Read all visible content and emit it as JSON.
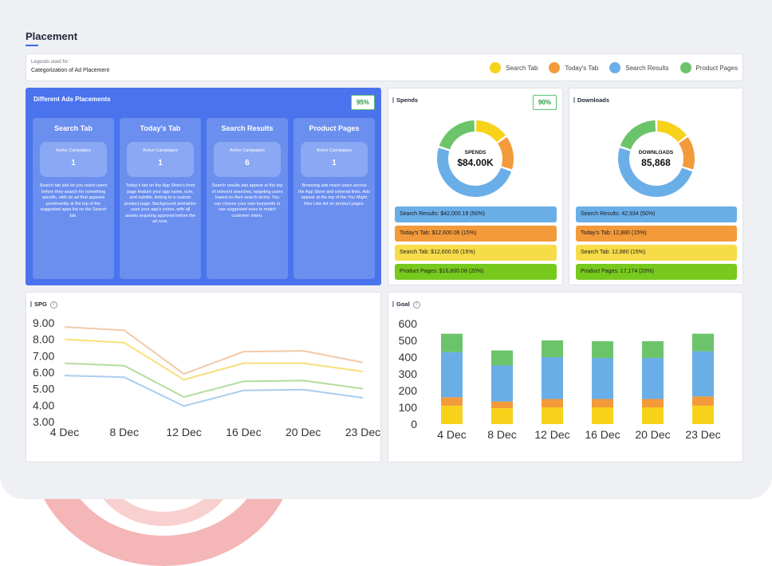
{
  "page": {
    "title": "Placement"
  },
  "legend": {
    "caption": "Legends used for :",
    "title": "Categorization of Ad Placement",
    "items": [
      {
        "label": "Search Tab",
        "color": "#f7d21a"
      },
      {
        "label": "Today's Tab",
        "color": "#f39a3b"
      },
      {
        "label": "Search Results",
        "color": "#6aaee8"
      },
      {
        "label": "Product Pages",
        "color": "#6cc46a"
      }
    ]
  },
  "ads": {
    "title": "Different Ads Placements",
    "badge": "95%",
    "columns": [
      {
        "name": "Search Tab",
        "campaign_label": "Active Campaigns",
        "campaigns": "1",
        "desc": "Search tab ads let you reach users before they search for something specific, with an ad that appears prominently at the top of the suggested apps list on the Search tab."
      },
      {
        "name": "Today's Tab",
        "campaign_label": "Active Campaigns",
        "campaigns": "1",
        "desc": "Today's tab on the App Store's front page feature your app name, icon, and subtitle, linking to a custom product page. Background animation uses your app's colors, with all assets requiring approval before the ad runs."
      },
      {
        "name": "Search Results",
        "campaign_label": "Active Campaigns",
        "campaigns": "6",
        "desc": "Search results ads appear at the top of relevent searches, targeting users based on their search terms. You can choose your own keywords or use suggested ones to match customer intent."
      },
      {
        "name": "Product Pages",
        "campaign_label": "Active Campaigns",
        "campaigns": "1",
        "desc": "Browsing ads reach users across the App Store and external links. Ads appear at the top of the You Might Also Like list on product pages."
      }
    ]
  },
  "spends": {
    "title": "Spends",
    "badge": "90%",
    "center_label": "SPENDS",
    "center_value": "$84.00K",
    "rows": [
      {
        "text": "Search Results: $42,000.19 (50%)",
        "color": "#6aaee8"
      },
      {
        "text": "Today's Tab: $12,600.06 (15%)",
        "color": "#f39a3b"
      },
      {
        "text": "Search Tab: $12,600.06 (15%)",
        "color": "#f7dc4a"
      },
      {
        "text": "Product Pages: $16,800.08 (20%)",
        "color": "#78c91e"
      }
    ]
  },
  "downloads": {
    "title": "Downloads",
    "center_label": "DOWNLOADS",
    "center_value": "85,868",
    "rows": [
      {
        "text": "Search Results: 42,934 (50%)",
        "color": "#6aaee8"
      },
      {
        "text": "Today's Tab: 12,880 (15%)",
        "color": "#f39a3b"
      },
      {
        "text": "Search Tab: 12,880 (15%)",
        "color": "#f7dc4a"
      },
      {
        "text": "Product Pages: 17,174 (20%)",
        "color": "#78c91e"
      }
    ]
  },
  "donut_segments": [
    {
      "name": "Search Tab",
      "pct": 15,
      "color": "#f7d21a"
    },
    {
      "name": "Today's Tab",
      "pct": 15,
      "color": "#f39a3b"
    },
    {
      "name": "Search Results",
      "pct": 50,
      "color": "#6aaee8"
    },
    {
      "name": "Product Pages",
      "pct": 20,
      "color": "#6cc46a"
    }
  ],
  "spg": {
    "title": "SPG",
    "chart_data": {
      "type": "line",
      "x": [
        "4 Dec",
        "8 Dec",
        "12 Dec",
        "16 Dec",
        "20 Dec",
        "23 Dec"
      ],
      "yticks": [
        "9.00",
        "8.00",
        "7.00",
        "6.00",
        "5.00",
        "4.00",
        "3.00"
      ],
      "ylim": [
        3,
        9
      ],
      "series": [
        {
          "values": [
            8.75,
            8.55,
            5.9,
            7.25,
            7.3,
            6.6
          ],
          "color": "#f2c9a8"
        },
        {
          "values": [
            8.0,
            7.8,
            5.55,
            6.55,
            6.55,
            6.05
          ],
          "color": "#f7e07a"
        },
        {
          "values": [
            6.55,
            6.4,
            4.5,
            5.45,
            5.5,
            5.0
          ],
          "color": "#b5dca0"
        },
        {
          "values": [
            5.8,
            5.7,
            3.95,
            4.9,
            4.95,
            4.45
          ],
          "color": "#a9cdee"
        }
      ]
    }
  },
  "goal": {
    "title": "Goal",
    "chart_data": {
      "type": "bar",
      "categories": [
        "4 Dec",
        "8 Dec",
        "12 Dec",
        "16 Dec",
        "20 Dec",
        "23 Dec"
      ],
      "yticks": [
        "600",
        "500",
        "400",
        "300",
        "200",
        "100",
        "0"
      ],
      "ylim": [
        0,
        600
      ],
      "series": [
        {
          "name": "Search Tab",
          "values": [
            110,
            95,
            100,
            100,
            100,
            110
          ],
          "color": "#f7d21a"
        },
        {
          "name": "Today's Tab",
          "values": [
            50,
            40,
            50,
            50,
            50,
            55
          ],
          "color": "#f39a3b"
        },
        {
          "name": "Search Results",
          "values": [
            270,
            215,
            250,
            245,
            245,
            270
          ],
          "color": "#6aaee8"
        },
        {
          "name": "Product Pages",
          "values": [
            110,
            90,
            100,
            100,
            100,
            105
          ],
          "color": "#6cc46a"
        }
      ]
    }
  }
}
